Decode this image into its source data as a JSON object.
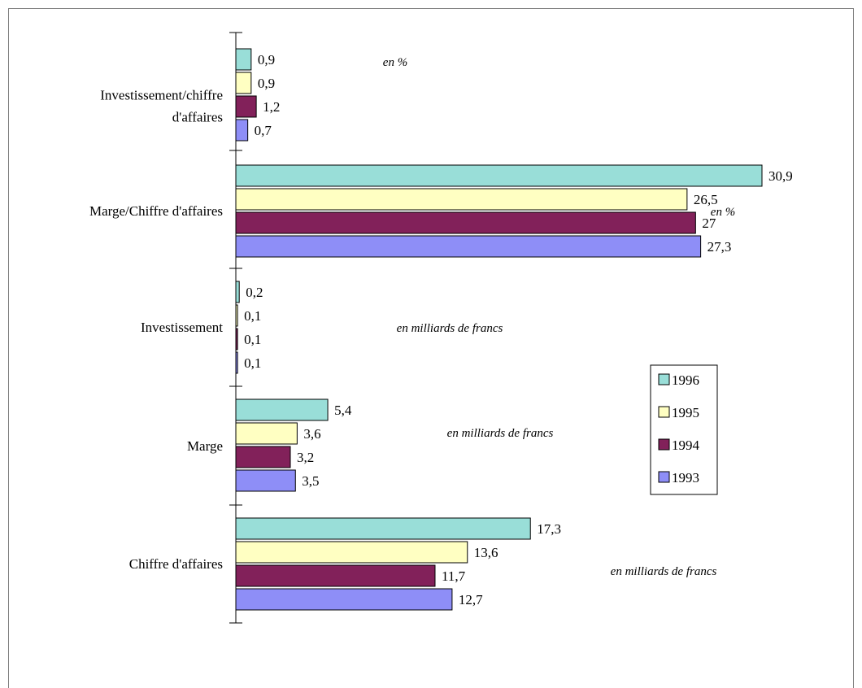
{
  "chart_data": {
    "type": "bar",
    "orientation": "horizontal",
    "title": "",
    "xlabel": "",
    "ylabel": "",
    "xlim": [
      0,
      30.9
    ],
    "grid": false,
    "legend_position": "right",
    "categories": [
      {
        "label_lines": [
          "Investissement/chiffre",
          "d'affaires"
        ],
        "unit": "en %"
      },
      {
        "label_lines": [
          "Marge/Chiffre d'affaires"
        ],
        "unit": "en %"
      },
      {
        "label_lines": [
          "Investissement"
        ],
        "unit": "en milliards de francs"
      },
      {
        "label_lines": [
          "Marge"
        ],
        "unit": "en milliards de francs"
      },
      {
        "label_lines": [
          "Chiffre d'affaires"
        ],
        "unit": "en milliards de francs"
      }
    ],
    "series": [
      {
        "name": "1996",
        "color": "#99ded8",
        "values": [
          0.9,
          30.9,
          0.2,
          5.4,
          17.3
        ],
        "labels": [
          "0,9",
          "30,9",
          "0,2",
          "5,4",
          "17,3"
        ]
      },
      {
        "name": "1995",
        "color": "#ffffc2",
        "values": [
          0.9,
          26.5,
          0.1,
          3.6,
          13.6
        ],
        "labels": [
          "0,9",
          "26,5",
          "0,1",
          "3,6",
          "13,6"
        ]
      },
      {
        "name": "1994",
        "color": "#82215a",
        "values": [
          1.2,
          27,
          0.1,
          3.2,
          11.7
        ],
        "labels": [
          "1,2",
          "27",
          "0,1",
          "3,2",
          "11,7"
        ]
      },
      {
        "name": "1993",
        "color": "#8e8ef7",
        "values": [
          0.7,
          27.3,
          0.1,
          3.5,
          12.7
        ],
        "labels": [
          "0,7",
          "27,3",
          "0,1",
          "3,5",
          "12,7"
        ]
      }
    ],
    "legend": [
      {
        "label": "1996",
        "color": "#99ded8"
      },
      {
        "label": "1995",
        "color": "#ffffc2"
      },
      {
        "label": "1994",
        "color": "#82215a"
      },
      {
        "label": "1993",
        "color": "#8e8ef7"
      }
    ]
  }
}
